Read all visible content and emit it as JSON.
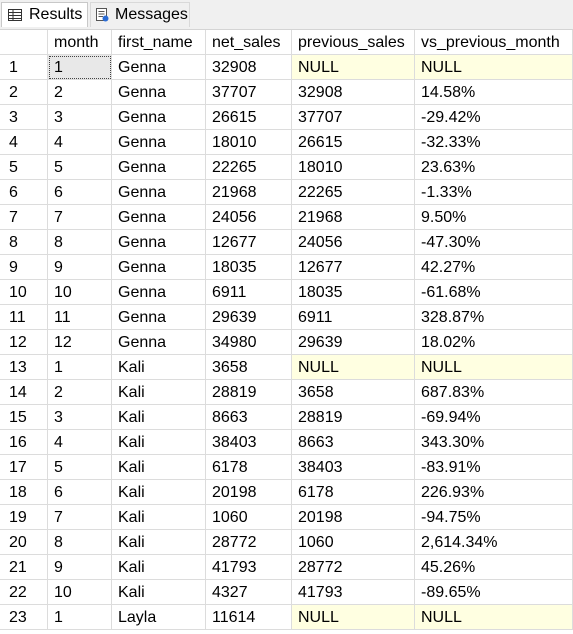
{
  "tabs": [
    {
      "label": "Results",
      "icon": "grid-icon"
    },
    {
      "label": "Messages",
      "icon": "messages-icon"
    }
  ],
  "columns": [
    "",
    "month",
    "first_name",
    "net_sales",
    "previous_sales",
    "vs_previous_month"
  ],
  "rows": [
    [
      "1",
      "1",
      "Genna",
      "32908",
      "NULL",
      "NULL"
    ],
    [
      "2",
      "2",
      "Genna",
      "37707",
      "32908",
      "14.58%"
    ],
    [
      "3",
      "3",
      "Genna",
      "26615",
      "37707",
      "-29.42%"
    ],
    [
      "4",
      "4",
      "Genna",
      "18010",
      "26615",
      "-32.33%"
    ],
    [
      "5",
      "5",
      "Genna",
      "22265",
      "18010",
      "23.63%"
    ],
    [
      "6",
      "6",
      "Genna",
      "21968",
      "22265",
      "-1.33%"
    ],
    [
      "7",
      "7",
      "Genna",
      "24056",
      "21968",
      "9.50%"
    ],
    [
      "8",
      "8",
      "Genna",
      "12677",
      "24056",
      "-47.30%"
    ],
    [
      "9",
      "9",
      "Genna",
      "18035",
      "12677",
      "42.27%"
    ],
    [
      "10",
      "10",
      "Genna",
      "6911",
      "18035",
      "-61.68%"
    ],
    [
      "11",
      "11",
      "Genna",
      "29639",
      "6911",
      "328.87%"
    ],
    [
      "12",
      "12",
      "Genna",
      "34980",
      "29639",
      "18.02%"
    ],
    [
      "13",
      "1",
      "Kali",
      "3658",
      "NULL",
      "NULL"
    ],
    [
      "14",
      "2",
      "Kali",
      "28819",
      "3658",
      "687.83%"
    ],
    [
      "15",
      "3",
      "Kali",
      "8663",
      "28819",
      "-69.94%"
    ],
    [
      "16",
      "4",
      "Kali",
      "38403",
      "8663",
      "343.30%"
    ],
    [
      "17",
      "5",
      "Kali",
      "6178",
      "38403",
      "-83.91%"
    ],
    [
      "18",
      "6",
      "Kali",
      "20198",
      "6178",
      "226.93%"
    ],
    [
      "19",
      "7",
      "Kali",
      "1060",
      "20198",
      "-94.75%"
    ],
    [
      "20",
      "8",
      "Kali",
      "28772",
      "1060",
      "2,614.34%"
    ],
    [
      "21",
      "9",
      "Kali",
      "41793",
      "28772",
      "45.26%"
    ],
    [
      "22",
      "10",
      "Kali",
      "4327",
      "41793",
      "-89.65%"
    ],
    [
      "23",
      "1",
      "Layla",
      "11614",
      "NULL",
      "NULL"
    ]
  ],
  "null_text": "NULL",
  "colors": {
    "null_bg": "#ffffe1",
    "grid_line": "#dcdcdc",
    "tab_bg": "#f0f0f0"
  }
}
